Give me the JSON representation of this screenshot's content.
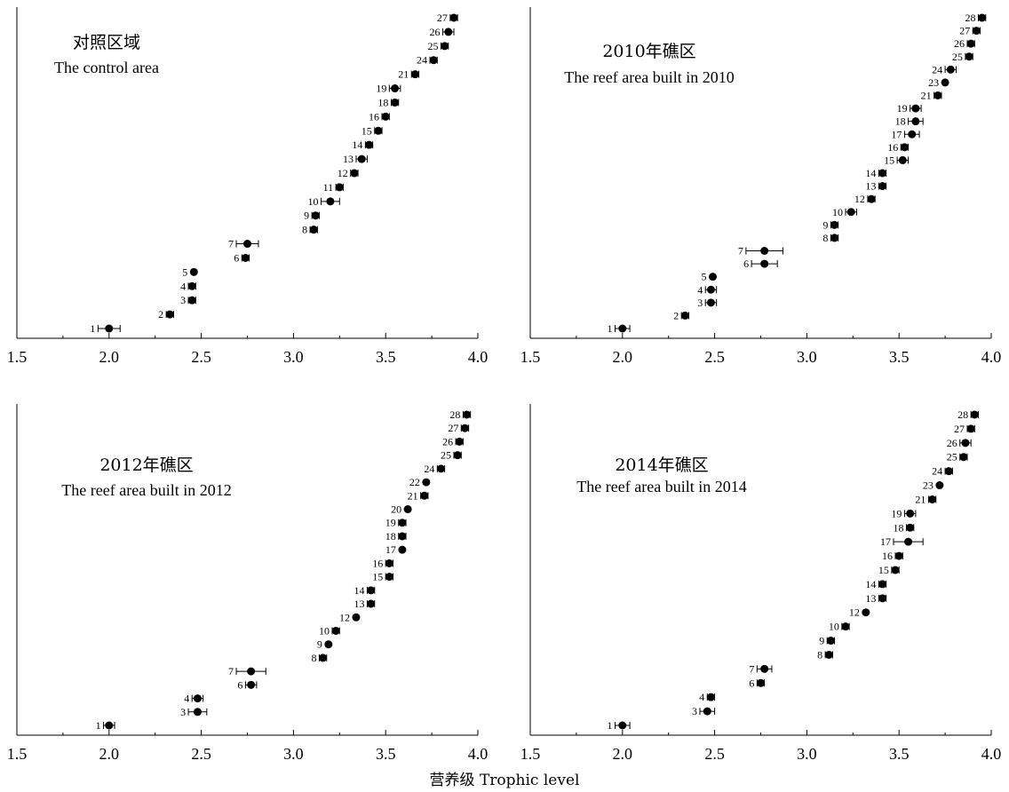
{
  "xlabel": "营养级 Trophic level",
  "chart_data": [
    {
      "type": "scatter",
      "title_cn": "对照区域",
      "title_en": "The control area",
      "xlim": [
        1.5,
        4.0
      ],
      "x_ticks": [
        "1.5",
        "2.0",
        "2.5",
        "3.0",
        "3.5",
        "4.0"
      ],
      "error_bars": true,
      "points": [
        {
          "label": "1",
          "x": 2.0,
          "err": 0.06
        },
        {
          "label": "2",
          "x": 2.33,
          "err": 0.02
        },
        {
          "label": "3",
          "x": 2.45,
          "err": 0.02
        },
        {
          "label": "4",
          "x": 2.45,
          "err": 0.02
        },
        {
          "label": "5",
          "x": 2.46,
          "err": 0.0
        },
        {
          "label": "6",
          "x": 2.74,
          "err": 0.02
        },
        {
          "label": "7",
          "x": 2.75,
          "err": 0.06
        },
        {
          "label": "8",
          "x": 3.11,
          "err": 0.02
        },
        {
          "label": "9",
          "x": 3.12,
          "err": 0.02
        },
        {
          "label": "10",
          "x": 3.2,
          "err": 0.05
        },
        {
          "label": "11",
          "x": 3.25,
          "err": 0.02
        },
        {
          "label": "12",
          "x": 3.33,
          "err": 0.02
        },
        {
          "label": "13",
          "x": 3.37,
          "err": 0.03
        },
        {
          "label": "14",
          "x": 3.41,
          "err": 0.02
        },
        {
          "label": "15",
          "x": 3.46,
          "err": 0.02
        },
        {
          "label": "16",
          "x": 3.5,
          "err": 0.02
        },
        {
          "label": "18",
          "x": 3.55,
          "err": 0.02
        },
        {
          "label": "19",
          "x": 3.55,
          "err": 0.03
        },
        {
          "label": "21",
          "x": 3.66,
          "err": 0.02
        },
        {
          "label": "24",
          "x": 3.76,
          "err": 0.02
        },
        {
          "label": "25",
          "x": 3.82,
          "err": 0.02
        },
        {
          "label": "26",
          "x": 3.84,
          "err": 0.03
        },
        {
          "label": "27",
          "x": 3.87,
          "err": 0.02
        }
      ]
    },
    {
      "type": "scatter",
      "title_cn": "2010年礁区",
      "title_en": "The reef area built in 2010",
      "xlim": [
        1.5,
        4.0
      ],
      "x_ticks": [
        "1.5",
        "2.0",
        "2.5",
        "3.0",
        "3.5",
        "4.0"
      ],
      "error_bars": true,
      "points": [
        {
          "label": "1",
          "x": 2.0,
          "err": 0.04
        },
        {
          "label": "2",
          "x": 2.34,
          "err": 0.02
        },
        {
          "label": "3",
          "x": 2.48,
          "err": 0.03
        },
        {
          "label": "4",
          "x": 2.48,
          "err": 0.03
        },
        {
          "label": "5",
          "x": 2.49,
          "err": 0.0
        },
        {
          "label": "6",
          "x": 2.77,
          "err": 0.07
        },
        {
          "label": "7",
          "x": 2.77,
          "err": 0.1
        },
        {
          "label": "8",
          "x": 3.15,
          "err": 0.02
        },
        {
          "label": "9",
          "x": 3.15,
          "err": 0.02
        },
        {
          "label": "10",
          "x": 3.24,
          "err": 0.03
        },
        {
          "label": "12",
          "x": 3.35,
          "err": 0.02
        },
        {
          "label": "13",
          "x": 3.41,
          "err": 0.02
        },
        {
          "label": "14",
          "x": 3.41,
          "err": 0.02
        },
        {
          "label": "15",
          "x": 3.52,
          "err": 0.03
        },
        {
          "label": "16",
          "x": 3.53,
          "err": 0.02
        },
        {
          "label": "17",
          "x": 3.57,
          "err": 0.04
        },
        {
          "label": "18",
          "x": 3.59,
          "err": 0.04
        },
        {
          "label": "19",
          "x": 3.59,
          "err": 0.03
        },
        {
          "label": "21",
          "x": 3.71,
          "err": 0.02
        },
        {
          "label": "23",
          "x": 3.75,
          "err": 0.0
        },
        {
          "label": "24",
          "x": 3.78,
          "err": 0.03
        },
        {
          "label": "25",
          "x": 3.88,
          "err": 0.02
        },
        {
          "label": "26",
          "x": 3.89,
          "err": 0.02
        },
        {
          "label": "27",
          "x": 3.92,
          "err": 0.02
        },
        {
          "label": "28",
          "x": 3.95,
          "err": 0.02
        }
      ]
    },
    {
      "type": "scatter",
      "title_cn": "2012年礁区",
      "title_en": "The reef area built in 2012",
      "xlim": [
        1.5,
        4.0
      ],
      "x_ticks": [
        "1.5",
        "2.0",
        "2.5",
        "3.0",
        "3.5",
        "4.0"
      ],
      "error_bars": true,
      "points": [
        {
          "label": "1",
          "x": 2.0,
          "err": 0.03
        },
        {
          "label": "3",
          "x": 2.48,
          "err": 0.05
        },
        {
          "label": "4",
          "x": 2.48,
          "err": 0.03
        },
        {
          "label": "6",
          "x": 2.77,
          "err": 0.03
        },
        {
          "label": "7",
          "x": 2.77,
          "err": 0.08
        },
        {
          "label": "8",
          "x": 3.16,
          "err": 0.02
        },
        {
          "label": "9",
          "x": 3.19,
          "err": 0.0
        },
        {
          "label": "10",
          "x": 3.23,
          "err": 0.02
        },
        {
          "label": "12",
          "x": 3.34,
          "err": 0.0
        },
        {
          "label": "13",
          "x": 3.42,
          "err": 0.02
        },
        {
          "label": "14",
          "x": 3.42,
          "err": 0.02
        },
        {
          "label": "15",
          "x": 3.52,
          "err": 0.02
        },
        {
          "label": "16",
          "x": 3.52,
          "err": 0.02
        },
        {
          "label": "17",
          "x": 3.59,
          "err": 0.0
        },
        {
          "label": "18",
          "x": 3.59,
          "err": 0.02
        },
        {
          "label": "19",
          "x": 3.59,
          "err": 0.02
        },
        {
          "label": "20",
          "x": 3.62,
          "err": 0.0
        },
        {
          "label": "21",
          "x": 3.71,
          "err": 0.02
        },
        {
          "label": "22",
          "x": 3.72,
          "err": 0.0
        },
        {
          "label": "24",
          "x": 3.8,
          "err": 0.02
        },
        {
          "label": "25",
          "x": 3.89,
          "err": 0.02
        },
        {
          "label": "26",
          "x": 3.9,
          "err": 0.02
        },
        {
          "label": "27",
          "x": 3.93,
          "err": 0.02
        },
        {
          "label": "28",
          "x": 3.94,
          "err": 0.02
        }
      ]
    },
    {
      "type": "scatter",
      "title_cn": "2014年礁区",
      "title_en": "The reef area built in 2014",
      "xlim": [
        1.5,
        4.0
      ],
      "x_ticks": [
        "1.5",
        "2.0",
        "2.5",
        "3.0",
        "3.5",
        "4.0"
      ],
      "error_bars": true,
      "points": [
        {
          "label": "1",
          "x": 2.0,
          "err": 0.04
        },
        {
          "label": "3",
          "x": 2.46,
          "err": 0.04
        },
        {
          "label": "4",
          "x": 2.48,
          "err": 0.02
        },
        {
          "label": "6",
          "x": 2.75,
          "err": 0.02
        },
        {
          "label": "7",
          "x": 2.77,
          "err": 0.04
        },
        {
          "label": "8",
          "x": 3.12,
          "err": 0.02
        },
        {
          "label": "9",
          "x": 3.13,
          "err": 0.02
        },
        {
          "label": "10",
          "x": 3.21,
          "err": 0.02
        },
        {
          "label": "12",
          "x": 3.32,
          "err": 0.0
        },
        {
          "label": "13",
          "x": 3.41,
          "err": 0.02
        },
        {
          "label": "14",
          "x": 3.41,
          "err": 0.02
        },
        {
          "label": "15",
          "x": 3.48,
          "err": 0.02
        },
        {
          "label": "16",
          "x": 3.5,
          "err": 0.02
        },
        {
          "label": "17",
          "x": 3.55,
          "err": 0.08
        },
        {
          "label": "18",
          "x": 3.56,
          "err": 0.02
        },
        {
          "label": "19",
          "x": 3.56,
          "err": 0.03
        },
        {
          "label": "21",
          "x": 3.68,
          "err": 0.02
        },
        {
          "label": "23",
          "x": 3.72,
          "err": 0.0
        },
        {
          "label": "24",
          "x": 3.77,
          "err": 0.02
        },
        {
          "label": "25",
          "x": 3.85,
          "err": 0.02
        },
        {
          "label": "26",
          "x": 3.86,
          "err": 0.03
        },
        {
          "label": "27",
          "x": 3.89,
          "err": 0.02
        },
        {
          "label": "28",
          "x": 3.91,
          "err": 0.02
        }
      ]
    }
  ]
}
